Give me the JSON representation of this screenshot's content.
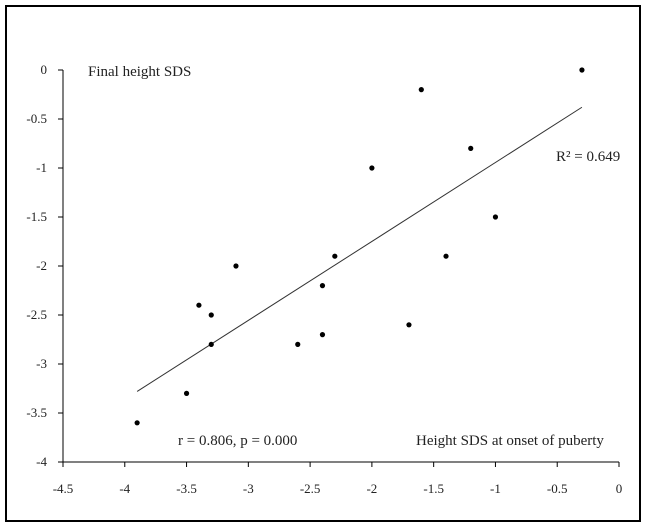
{
  "chart_data": {
    "type": "scatter",
    "ylabel": "Final height SDS",
    "xlabel": "Height SDS at onset of puberty",
    "r2_label": "R² = 0.649",
    "stats_label": "r = 0.806, p = 0.000",
    "xlim": [
      -4.5,
      0
    ],
    "ylim": [
      -4,
      0
    ],
    "xticks": [
      "-4.5",
      "-4",
      "-3.5",
      "-3",
      "-2.5",
      "-2",
      "-1.5",
      "-1",
      "-0.5",
      "0"
    ],
    "yticks": [
      "0",
      "-0.5",
      "-1",
      "-1.5",
      "-2",
      "-2.5",
      "-3",
      "-3.5",
      "-4"
    ],
    "points": [
      {
        "x": -3.9,
        "y": -3.6
      },
      {
        "x": -3.5,
        "y": -3.3
      },
      {
        "x": -3.4,
        "y": -2.4
      },
      {
        "x": -3.3,
        "y": -2.5
      },
      {
        "x": -3.3,
        "y": -2.8
      },
      {
        "x": -3.1,
        "y": -2.0
      },
      {
        "x": -2.6,
        "y": -2.8
      },
      {
        "x": -2.4,
        "y": -2.2
      },
      {
        "x": -2.4,
        "y": -2.7
      },
      {
        "x": -2.3,
        "y": -1.9
      },
      {
        "x": -2.0,
        "y": -1.0
      },
      {
        "x": -1.7,
        "y": -2.6
      },
      {
        "x": -1.6,
        "y": -0.2
      },
      {
        "x": -1.4,
        "y": -1.9
      },
      {
        "x": -1.2,
        "y": -0.8
      },
      {
        "x": -1.0,
        "y": -1.5
      },
      {
        "x": -0.3,
        "y": 0.0
      }
    ],
    "trendline": {
      "x": [
        -3.9,
        -0.3
      ],
      "y": [
        -3.28,
        -0.38
      ]
    },
    "grid": false,
    "colors": {
      "points": "#000000",
      "trendline": "#333333",
      "axis": "#000000"
    }
  }
}
